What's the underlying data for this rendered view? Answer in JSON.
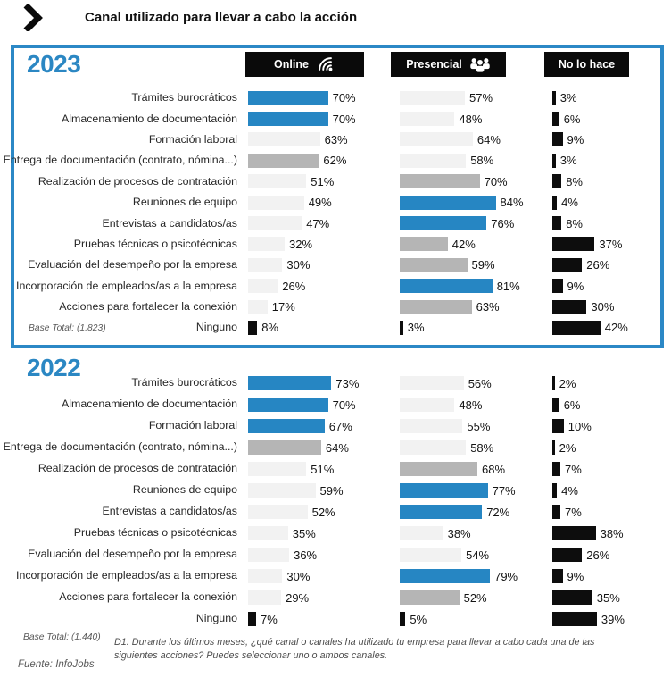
{
  "header": {
    "title": "Canal utilizado para llevar a cabo la acción"
  },
  "columns": {
    "online": "Online",
    "presencial": "Presencial",
    "nolohace": "No lo hace"
  },
  "colors": {
    "blue": "#2686c3",
    "gray": "#b5b5b5",
    "light": "#f2f2f2",
    "black": "#0d0d0d",
    "border": "#2b88c6"
  },
  "sections": [
    {
      "year": "2023",
      "base_total": "Base Total: (1.823)",
      "rows": [
        {
          "label": "Trámites burocráticos",
          "online": {
            "value": 70,
            "color": "blue"
          },
          "presencial": {
            "value": 57,
            "color": "light"
          },
          "nolohace": {
            "value": 3,
            "color": "black"
          }
        },
        {
          "label": "Almacenamiento de documentación",
          "online": {
            "value": 70,
            "color": "blue"
          },
          "presencial": {
            "value": 48,
            "color": "light"
          },
          "nolohace": {
            "value": 6,
            "color": "black"
          }
        },
        {
          "label": "Formación laboral",
          "online": {
            "value": 63,
            "color": "light"
          },
          "presencial": {
            "value": 64,
            "color": "light"
          },
          "nolohace": {
            "value": 9,
            "color": "black"
          }
        },
        {
          "label": "Entrega de documentación (contrato, nómina...)",
          "online": {
            "value": 62,
            "color": "gray"
          },
          "presencial": {
            "value": 58,
            "color": "light"
          },
          "nolohace": {
            "value": 3,
            "color": "black"
          }
        },
        {
          "label": "Realización de procesos de contratación",
          "online": {
            "value": 51,
            "color": "light"
          },
          "presencial": {
            "value": 70,
            "color": "gray"
          },
          "nolohace": {
            "value": 8,
            "color": "black"
          }
        },
        {
          "label": "Reuniones de equipo",
          "online": {
            "value": 49,
            "color": "light"
          },
          "presencial": {
            "value": 84,
            "color": "blue"
          },
          "nolohace": {
            "value": 4,
            "color": "black"
          }
        },
        {
          "label": "Entrevistas a candidatos/as",
          "online": {
            "value": 47,
            "color": "light"
          },
          "presencial": {
            "value": 76,
            "color": "blue"
          },
          "nolohace": {
            "value": 8,
            "color": "black"
          }
        },
        {
          "label": "Pruebas técnicas o psicotécnicas",
          "online": {
            "value": 32,
            "color": "light"
          },
          "presencial": {
            "value": 42,
            "color": "gray"
          },
          "nolohace": {
            "value": 37,
            "color": "black"
          }
        },
        {
          "label": "Evaluación del desempeño por la empresa",
          "online": {
            "value": 30,
            "color": "light"
          },
          "presencial": {
            "value": 59,
            "color": "gray"
          },
          "nolohace": {
            "value": 26,
            "color": "black"
          }
        },
        {
          "label": "Incorporación de empleados/as a la empresa",
          "online": {
            "value": 26,
            "color": "light"
          },
          "presencial": {
            "value": 81,
            "color": "blue"
          },
          "nolohace": {
            "value": 9,
            "color": "black"
          }
        },
        {
          "label": "Acciones para fortalecer la conexión",
          "online": {
            "value": 17,
            "color": "light"
          },
          "presencial": {
            "value": 63,
            "color": "gray"
          },
          "nolohace": {
            "value": 30,
            "color": "black"
          }
        },
        {
          "label": "Ninguno",
          "online": {
            "value": 8,
            "color": "black"
          },
          "presencial": {
            "value": 3,
            "color": "black"
          },
          "nolohace": {
            "value": 42,
            "color": "black"
          }
        }
      ]
    },
    {
      "year": "2022",
      "base_total": "Base Total: (1.440)",
      "rows": [
        {
          "label": "Trámites burocráticos",
          "online": {
            "value": 73,
            "color": "blue"
          },
          "presencial": {
            "value": 56,
            "color": "light"
          },
          "nolohace": {
            "value": 2,
            "color": "black"
          }
        },
        {
          "label": "Almacenamiento de documentación",
          "online": {
            "value": 70,
            "color": "blue"
          },
          "presencial": {
            "value": 48,
            "color": "light"
          },
          "nolohace": {
            "value": 6,
            "color": "black"
          }
        },
        {
          "label": "Formación laboral",
          "online": {
            "value": 67,
            "color": "blue"
          },
          "presencial": {
            "value": 55,
            "color": "light"
          },
          "nolohace": {
            "value": 10,
            "color": "black"
          }
        },
        {
          "label": "Entrega de documentación (contrato, nómina...)",
          "online": {
            "value": 64,
            "color": "gray"
          },
          "presencial": {
            "value": 58,
            "color": "light"
          },
          "nolohace": {
            "value": 2,
            "color": "black"
          }
        },
        {
          "label": "Realización de procesos de contratación",
          "online": {
            "value": 51,
            "color": "light"
          },
          "presencial": {
            "value": 68,
            "color": "gray"
          },
          "nolohace": {
            "value": 7,
            "color": "black"
          }
        },
        {
          "label": "Reuniones de equipo",
          "online": {
            "value": 59,
            "color": "light"
          },
          "presencial": {
            "value": 77,
            "color": "blue"
          },
          "nolohace": {
            "value": 4,
            "color": "black"
          }
        },
        {
          "label": "Entrevistas a candidatos/as",
          "online": {
            "value": 52,
            "color": "light"
          },
          "presencial": {
            "value": 72,
            "color": "blue"
          },
          "nolohace": {
            "value": 7,
            "color": "black"
          }
        },
        {
          "label": "Pruebas técnicas o psicotécnicas",
          "online": {
            "value": 35,
            "color": "light"
          },
          "presencial": {
            "value": 38,
            "color": "light"
          },
          "nolohace": {
            "value": 38,
            "color": "black"
          }
        },
        {
          "label": "Evaluación del desempeño por la empresa",
          "online": {
            "value": 36,
            "color": "light"
          },
          "presencial": {
            "value": 54,
            "color": "light"
          },
          "nolohace": {
            "value": 26,
            "color": "black"
          }
        },
        {
          "label": "Incorporación de empleados/as a la empresa",
          "online": {
            "value": 30,
            "color": "light"
          },
          "presencial": {
            "value": 79,
            "color": "blue"
          },
          "nolohace": {
            "value": 9,
            "color": "black"
          }
        },
        {
          "label": "Acciones para fortalecer la conexión",
          "online": {
            "value": 29,
            "color": "light"
          },
          "presencial": {
            "value": 52,
            "color": "gray"
          },
          "nolohace": {
            "value": 35,
            "color": "black"
          }
        },
        {
          "label": "Ninguno",
          "online": {
            "value": 7,
            "color": "black"
          },
          "presencial": {
            "value": 5,
            "color": "black"
          },
          "nolohace": {
            "value": 39,
            "color": "black"
          }
        }
      ]
    }
  ],
  "footer": {
    "source": "Fuente: InfoJobs",
    "note_line1": "D1. Durante los últimos meses, ¿qué canal o canales ha utilizado tu empresa para llevar a cabo cada una de las",
    "note_line2": "siguientes acciones? Puedes seleccionar uno o ambos canales."
  },
  "chart_data": [
    {
      "type": "bar",
      "title": "Canal utilizado para llevar a cabo la acción — 2023",
      "base_total": "(1.823)",
      "unit": "%",
      "xlim": [
        0,
        100
      ],
      "orientation": "horizontal",
      "legend_position": "top",
      "categories": [
        "Trámites burocráticos",
        "Almacenamiento de documentación",
        "Formación laboral",
        "Entrega de documentación (contrato, nómina...)",
        "Realización de procesos de contratación",
        "Reuniones de equipo",
        "Entrevistas a candidatos/as",
        "Pruebas técnicas o psicotécnicas",
        "Evaluación del desempeño por la empresa",
        "Incorporación de empleados/as a la empresa",
        "Acciones para fortalecer la conexión",
        "Ninguno"
      ],
      "series": [
        {
          "name": "Online",
          "values": [
            70,
            70,
            63,
            62,
            51,
            49,
            47,
            32,
            30,
            26,
            17,
            8
          ]
        },
        {
          "name": "Presencial",
          "values": [
            57,
            48,
            64,
            58,
            70,
            84,
            76,
            42,
            59,
            81,
            63,
            3
          ]
        },
        {
          "name": "No lo hace",
          "values": [
            3,
            6,
            9,
            3,
            8,
            4,
            8,
            37,
            26,
            9,
            30,
            42
          ]
        }
      ]
    },
    {
      "type": "bar",
      "title": "Canal utilizado para llevar a cabo la acción — 2022",
      "base_total": "(1.440)",
      "unit": "%",
      "xlim": [
        0,
        100
      ],
      "orientation": "horizontal",
      "legend_position": "top",
      "categories": [
        "Trámites burocráticos",
        "Almacenamiento de documentación",
        "Formación laboral",
        "Entrega de documentación (contrato, nómina...)",
        "Realización de procesos de contratación",
        "Reuniones de equipo",
        "Entrevistas a candidatos/as",
        "Pruebas técnicas o psicotécnicas",
        "Evaluación del desempeño por la empresa",
        "Incorporación de empleados/as a la empresa",
        "Acciones para fortalecer la conexión",
        "Ninguno"
      ],
      "series": [
        {
          "name": "Online",
          "values": [
            73,
            70,
            67,
            64,
            51,
            59,
            52,
            35,
            36,
            30,
            29,
            7
          ]
        },
        {
          "name": "Presencial",
          "values": [
            56,
            48,
            55,
            58,
            68,
            77,
            72,
            38,
            54,
            79,
            52,
            5
          ]
        },
        {
          "name": "No lo hace",
          "values": [
            2,
            6,
            10,
            2,
            7,
            4,
            7,
            38,
            26,
            9,
            35,
            39
          ]
        }
      ]
    }
  ]
}
